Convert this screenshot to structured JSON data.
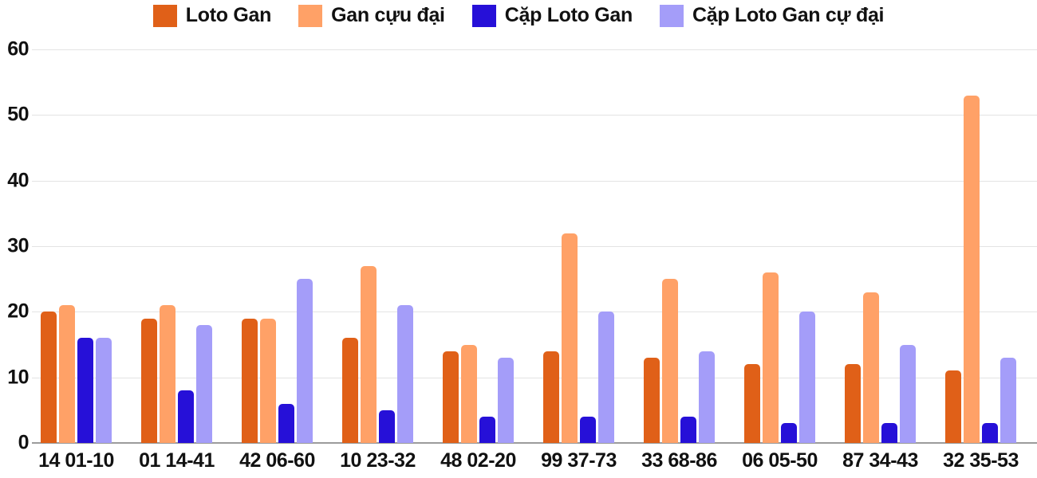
{
  "chart_data": {
    "type": "bar",
    "title": "",
    "categories": [
      "14 01-10",
      "01 14-41",
      "42 06-60",
      "10 23-32",
      "48 02-20",
      "99 37-73",
      "33 68-86",
      "06 05-50",
      "87 34-43",
      "32 35-53"
    ],
    "series": [
      {
        "name": "Loto Gan",
        "color": "#e06018",
        "values": [
          20,
          19,
          19,
          16,
          14,
          14,
          13,
          12,
          12,
          11
        ]
      },
      {
        "name": "Gan cựu đại",
        "color": "#ffa167",
        "values": [
          21,
          21,
          19,
          27,
          15,
          32,
          25,
          26,
          23,
          53
        ]
      },
      {
        "name": "Cặp Loto Gan",
        "color": "#2610d8",
        "values": [
          16,
          8,
          6,
          5,
          4,
          4,
          4,
          3,
          3,
          3
        ]
      },
      {
        "name": "Cặp Loto Gan cự đại",
        "color": "#a49df9",
        "values": [
          16,
          18,
          25,
          21,
          13,
          20,
          14,
          20,
          15,
          13
        ]
      }
    ],
    "xlabel": "",
    "ylabel": "",
    "ylim": [
      0,
      60
    ],
    "yticks": [
      0,
      10,
      20,
      30,
      40,
      50,
      60
    ],
    "grid": true,
    "legend_position": "top",
    "colors": {
      "grid_line": "#e3e3e3",
      "axis_line": "#9b9b9b",
      "text": "#111111",
      "background": "#ffffff"
    }
  }
}
